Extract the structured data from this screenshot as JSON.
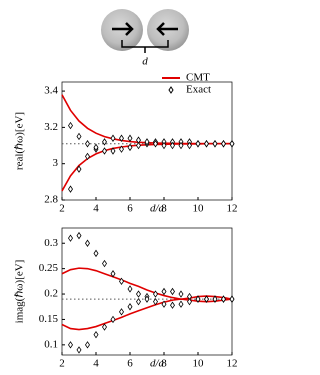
{
  "diagram": {
    "label": "d"
  },
  "chart_data": [
    {
      "type": "line",
      "ylabel": "real(ℏω)[eV]",
      "xlabel": "d/a",
      "xlim": [
        2,
        12
      ],
      "xticks": [
        2,
        4,
        6,
        8,
        10,
        12
      ],
      "ylim": [
        2.8,
        3.45
      ],
      "yticks": [
        2.8,
        3,
        3.2,
        3.4
      ],
      "reference": 3.11,
      "legend": "upper right",
      "series": [
        {
          "name": "CMT",
          "color": "#e00000",
          "marker": "line",
          "x": [
            2,
            2.5,
            3,
            3.5,
            4,
            4.5,
            5,
            5.5,
            6,
            6.5,
            7,
            7.5,
            8,
            8.5,
            9,
            9.5,
            10,
            10.5,
            11,
            11.5,
            12
          ],
          "values": [
            [
              3.38,
              3.294,
              3.235,
              3.195,
              3.168,
              3.149,
              3.137,
              3.128,
              3.122,
              3.118,
              3.116,
              3.114,
              3.113,
              3.112,
              3.111,
              3.111,
              3.111,
              3.11,
              3.11,
              3.11,
              3.11
            ],
            [
              2.85,
              2.933,
              2.99,
              3.028,
              3.054,
              3.072,
              3.084,
              3.092,
              3.098,
              3.102,
              3.104,
              3.106,
              3.107,
              3.108,
              3.109,
              3.109,
              3.109,
              3.11,
              3.11,
              3.11,
              3.11
            ]
          ]
        },
        {
          "name": "Exact",
          "color": "#000000",
          "marker": "diamond",
          "x": [
            2.5,
            3,
            3.5,
            4,
            4.5,
            5,
            5.5,
            6,
            6.5,
            7,
            7.5,
            8,
            8.5,
            9,
            9.5,
            10,
            10.5,
            11,
            11.5,
            12
          ],
          "values": [
            [
              3.21,
              3.15,
              3.11,
              3.08,
              3.07,
              3.07,
              3.08,
              3.09,
              3.1,
              3.11,
              3.12,
              3.12,
              3.12,
              3.12,
              3.12,
              3.11,
              3.11,
              3.11,
              3.11,
              3.11
            ],
            [
              2.86,
              2.97,
              3.04,
              3.09,
              3.12,
              3.14,
              3.14,
              3.14,
              3.13,
              3.12,
              3.11,
              3.1,
              3.1,
              3.1,
              3.1,
              3.11,
              3.11,
              3.11,
              3.11,
              3.11
            ]
          ]
        }
      ]
    },
    {
      "type": "line",
      "ylabel": "imag(ℏω)[eV]",
      "xlabel": "d/a",
      "xlim": [
        2,
        12
      ],
      "xticks": [
        2,
        4,
        6,
        8,
        10,
        12
      ],
      "ylim": [
        0.08,
        0.33
      ],
      "yticks": [
        0.1,
        0.15,
        0.2,
        0.25,
        0.3
      ],
      "reference": 0.19,
      "series": [
        {
          "name": "CMT",
          "color": "#e00000",
          "marker": "line",
          "x": [
            2,
            2.5,
            3,
            3.5,
            4,
            4.5,
            5,
            5.5,
            6,
            6.5,
            7,
            7.5,
            8,
            8.5,
            9,
            9.5,
            10,
            10.5,
            11,
            11.5,
            12
          ],
          "values": [
            [
              0.24,
              0.248,
              0.251,
              0.25,
              0.246,
              0.24,
              0.234,
              0.228,
              0.221,
              0.215,
              0.208,
              0.202,
              0.197,
              0.193,
              0.19,
              0.192,
              0.195,
              0.196,
              0.195,
              0.193,
              0.19
            ],
            [
              0.14,
              0.132,
              0.13,
              0.132,
              0.136,
              0.142,
              0.148,
              0.154,
              0.161,
              0.167,
              0.173,
              0.179,
              0.184,
              0.188,
              0.19,
              0.188,
              0.186,
              0.185,
              0.186,
              0.188,
              0.19
            ]
          ]
        },
        {
          "name": "Exact",
          "color": "#000000",
          "marker": "diamond",
          "x": [
            2.5,
            3,
            3.5,
            4,
            4.5,
            5,
            5.5,
            6,
            6.5,
            7,
            7.5,
            8,
            8.5,
            9,
            9.5,
            10,
            10.5,
            11,
            11.5,
            12
          ],
          "values": [
            [
              0.31,
              0.315,
              0.3,
              0.28,
              0.26,
              0.24,
              0.225,
              0.21,
              0.2,
              0.195,
              0.2,
              0.205,
              0.205,
              0.2,
              0.195,
              0.19,
              0.19,
              0.19,
              0.19,
              0.19
            ],
            [
              0.1,
              0.09,
              0.1,
              0.12,
              0.135,
              0.15,
              0.165,
              0.175,
              0.185,
              0.19,
              0.185,
              0.18,
              0.178,
              0.18,
              0.185,
              0.19,
              0.19,
              0.19,
              0.19,
              0.19
            ]
          ]
        }
      ]
    }
  ]
}
